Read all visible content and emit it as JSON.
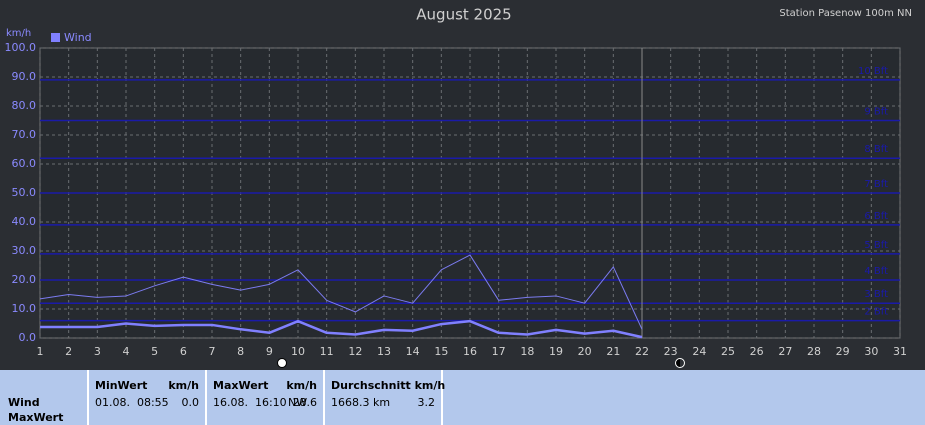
{
  "chart_data": {
    "type": "line",
    "title": "August 2025",
    "subtitle": "Station Pasenow 100m NN",
    "y_label": "km/h",
    "x": [
      1,
      2,
      3,
      4,
      5,
      6,
      7,
      8,
      9,
      10,
      11,
      12,
      13,
      14,
      15,
      16,
      17,
      18,
      19,
      20,
      21,
      22
    ],
    "series": [
      {
        "name": "Wind",
        "color": "#8080ff",
        "width": 2.5,
        "values": [
          3.8,
          3.8,
          3.8,
          5,
          4.2,
          4.5,
          4.5,
          3,
          1.8,
          5.8,
          1.8,
          1.2,
          2.8,
          2.5,
          4.8,
          5.8,
          1.8,
          1.2,
          2.8,
          1.5,
          2.5,
          0.3
        ]
      },
      {
        "color": "#7b7bf0",
        "width": 1,
        "values": [
          13.5,
          15,
          14,
          14.5,
          18,
          21,
          18.5,
          16.5,
          18.5,
          23.5,
          13,
          9,
          14.5,
          12,
          23.5,
          28.6,
          13,
          14,
          14.5,
          12,
          24.5,
          3
        ]
      }
    ],
    "xlim": [
      1,
      31
    ],
    "xticks": [
      1,
      2,
      3,
      4,
      5,
      6,
      7,
      8,
      9,
      10,
      11,
      12,
      13,
      14,
      15,
      16,
      17,
      18,
      19,
      20,
      21,
      22,
      23,
      24,
      25,
      26,
      27,
      28,
      29,
      30,
      31
    ],
    "ylim": [
      0,
      100
    ],
    "yticks": [
      {
        "value": 0,
        "label": "0.0"
      },
      {
        "value": 10,
        "label": "10.0"
      },
      {
        "value": 20,
        "label": "20.0"
      },
      {
        "value": 30,
        "label": "30.0"
      },
      {
        "value": 40,
        "label": "40.0"
      },
      {
        "value": 50,
        "label": "50.0"
      },
      {
        "value": 60,
        "label": "60.0"
      },
      {
        "value": 70,
        "label": "70.0"
      },
      {
        "value": 80,
        "label": "80.0"
      },
      {
        "value": 90,
        "label": "90.0"
      },
      {
        "value": 100,
        "label": "100.0"
      }
    ],
    "grid": true,
    "today": 22,
    "bands": [
      {
        "value": 6,
        "label": "2 Bft"
      },
      {
        "value": 12,
        "label": "3 Bft"
      },
      {
        "value": 20,
        "label": "4 Bft"
      },
      {
        "value": 29,
        "label": "5 Bft"
      },
      {
        "value": 39,
        "label": "6 Bft"
      },
      {
        "value": 50,
        "label": "7 Bft"
      },
      {
        "value": 62,
        "label": "8 Bft"
      },
      {
        "value": 75,
        "label": "9 Bft"
      },
      {
        "value": 89,
        "label": "10 Bft"
      }
    ],
    "band_color": "#1a1aa8"
  },
  "table": {
    "row_labels": [
      "Wind",
      "MaxWert"
    ],
    "columns": [
      {
        "head": [
          "MinWert",
          "km/h"
        ],
        "cells": [
          "01.08.  08:55",
          "0.0"
        ]
      },
      {
        "head": [
          "MaxWert",
          "km/h"
        ],
        "cells": [
          "16.08.  16:10",
          "NW",
          "28.6"
        ]
      },
      {
        "head": [
          "Durchschnitt km/h"
        ],
        "cells": [
          "1668.3 km",
          "3.2"
        ]
      }
    ]
  }
}
